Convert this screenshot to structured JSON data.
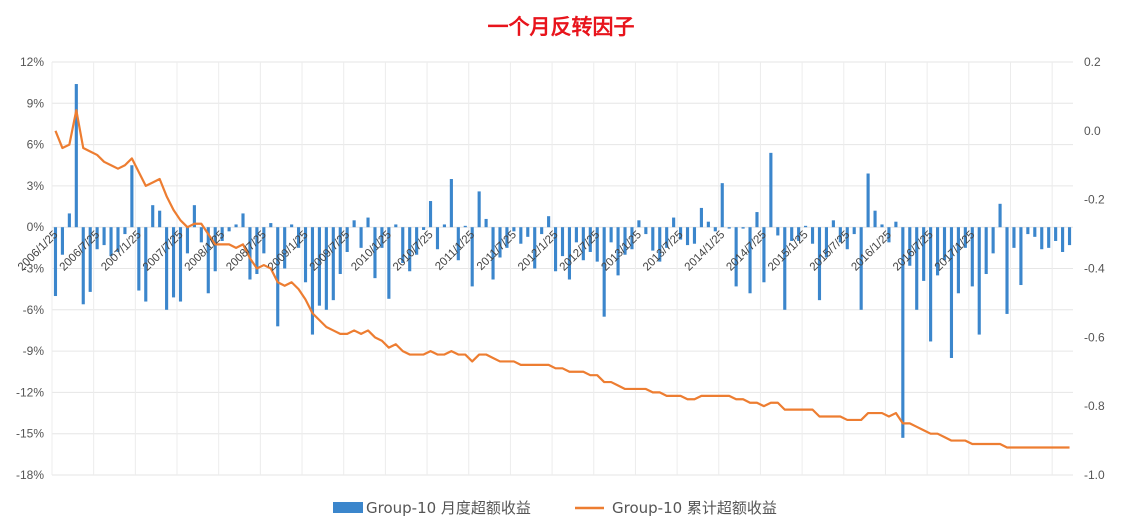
{
  "chart_data": {
    "type": "bar+line",
    "title": "一个月反转因子",
    "x_start": "2006/1/25",
    "x_tick_labels": [
      "2006/1/25",
      "2006/7/25",
      "2007/1/25",
      "2007/7/25",
      "2008/1/25",
      "2008/7/25",
      "2009/1/25",
      "2009/7/25",
      "2010/1/25",
      "2010/7/25",
      "2011/1/25",
      "2011/7/25",
      "2012/1/25",
      "2012/7/25",
      "2013/1/25",
      "2013/7/25",
      "2014/1/25",
      "2014/7/25",
      "2015/1/25",
      "2015/7/25",
      "2016/1/25",
      "2016/7/25",
      "2017/1/25"
    ],
    "y_left": {
      "min": -18,
      "max": 12,
      "step": 3,
      "unit": "%",
      "tick_labels": [
        "12%",
        "9%",
        "6%",
        "3%",
        "0%",
        "-3%",
        "-6%",
        "-9%",
        "-12%",
        "-15%",
        "-18%"
      ]
    },
    "y_right": {
      "min": -1.0,
      "max": 0.2,
      "step": 0.2,
      "tick_labels": [
        "0.2",
        "0.0",
        "-0.2",
        "-0.4",
        "-0.6",
        "-0.8",
        "-1.0"
      ]
    },
    "grid": true,
    "legend_position": "bottom",
    "series": [
      {
        "name": "Group-10 月度超额收益",
        "type": "bar",
        "axis": "left",
        "color": "#3b86cc",
        "values": [
          -5.0,
          -2.0,
          1.0,
          10.4,
          -5.6,
          -4.7,
          -1.6,
          -1.3,
          -2.1,
          -1.8,
          -0.5,
          4.5,
          -4.6,
          -5.4,
          1.6,
          1.2,
          -6.0,
          -5.1,
          -5.4,
          -1.9,
          1.6,
          -1.1,
          -4.8,
          -3.2,
          -1.0,
          -0.3,
          0.2,
          1.0,
          -3.8,
          -3.4,
          -1.9,
          0.3,
          -7.2,
          -3.0,
          0.2,
          -1.5,
          -4.0,
          -7.8,
          -5.7,
          -6.0,
          -5.3,
          -3.4,
          -1.8,
          0.5,
          -1.5,
          0.7,
          -3.7,
          -1.5,
          -5.2,
          0.2,
          -2.6,
          -3.2,
          -2.0,
          -0.2,
          1.9,
          -1.6,
          0.2,
          3.5,
          -2.4,
          0.1,
          -4.3,
          2.6,
          0.6,
          -3.8,
          -2.2,
          -1.5,
          -0.3,
          -1.2,
          -0.7,
          -3.0,
          -0.5,
          0.8,
          -3.2,
          -2.1,
          -3.8,
          -1.1,
          -2.4,
          -1.8,
          -2.5,
          -6.5,
          -1.1,
          -3.5,
          -2.0,
          -1.6,
          0.5,
          -0.5,
          -1.7,
          -2.5,
          -1.5,
          0.7,
          -0.9,
          -1.3,
          -1.2,
          1.4,
          0.4,
          -0.3,
          3.2,
          -0.1,
          -4.3,
          -0.1,
          -4.8,
          1.1,
          -4.0,
          5.4,
          -0.6,
          -6.0,
          -1.0,
          -1.0,
          0.1,
          -1.2,
          -5.3,
          -2.2,
          0.5,
          -1.1,
          -1.6,
          -0.5,
          -6.0,
          3.9,
          1.2,
          0.2,
          -1.1,
          0.4,
          -15.3,
          -2.8,
          -6.0,
          -3.9,
          -8.3,
          -3.5,
          -2.4,
          -9.5,
          -4.8,
          -1.5,
          -4.3,
          -7.8,
          -3.4,
          -1.9,
          1.7,
          -6.3,
          -1.5,
          -4.2,
          -0.5,
          -0.7,
          -1.6,
          -1.5,
          -1.0,
          -1.8,
          -1.3
        ],
        "values_unit": "%"
      },
      {
        "name": "Group-10 累计超额收益",
        "type": "line",
        "axis": "right",
        "color": "#ed7d31",
        "values": [
          0.0,
          -0.05,
          -0.04,
          0.06,
          -0.05,
          -0.06,
          -0.07,
          -0.09,
          -0.1,
          -0.11,
          -0.1,
          -0.08,
          -0.12,
          -0.16,
          -0.15,
          -0.14,
          -0.19,
          -0.23,
          -0.26,
          -0.28,
          -0.27,
          -0.27,
          -0.3,
          -0.33,
          -0.33,
          -0.33,
          -0.34,
          -0.33,
          -0.37,
          -0.4,
          -0.39,
          -0.4,
          -0.44,
          -0.45,
          -0.44,
          -0.46,
          -0.49,
          -0.53,
          -0.55,
          -0.57,
          -0.58,
          -0.59,
          -0.59,
          -0.58,
          -0.59,
          -0.58,
          -0.6,
          -0.61,
          -0.63,
          -0.62,
          -0.64,
          -0.65,
          -0.65,
          -0.65,
          -0.64,
          -0.65,
          -0.65,
          -0.64,
          -0.65,
          -0.65,
          -0.67,
          -0.65,
          -0.65,
          -0.66,
          -0.67,
          -0.67,
          -0.67,
          -0.68,
          -0.68,
          -0.68,
          -0.68,
          -0.68,
          -0.69,
          -0.69,
          -0.7,
          -0.7,
          -0.7,
          -0.71,
          -0.71,
          -0.73,
          -0.73,
          -0.74,
          -0.75,
          -0.75,
          -0.75,
          -0.75,
          -0.76,
          -0.76,
          -0.77,
          -0.77,
          -0.77,
          -0.78,
          -0.78,
          -0.77,
          -0.77,
          -0.77,
          -0.77,
          -0.77,
          -0.78,
          -0.78,
          -0.79,
          -0.79,
          -0.8,
          -0.79,
          -0.79,
          -0.81,
          -0.81,
          -0.81,
          -0.81,
          -0.81,
          -0.83,
          -0.83,
          -0.83,
          -0.83,
          -0.84,
          -0.84,
          -0.84,
          -0.82,
          -0.82,
          -0.82,
          -0.83,
          -0.82,
          -0.85,
          -0.85,
          -0.86,
          -0.87,
          -0.88,
          -0.88,
          -0.89,
          -0.9,
          -0.9,
          -0.9,
          -0.91,
          -0.91,
          -0.91,
          -0.91,
          -0.91,
          -0.92,
          -0.92,
          -0.92,
          -0.92,
          -0.92,
          -0.92,
          -0.92,
          -0.92,
          -0.92,
          -0.92
        ]
      }
    ]
  }
}
